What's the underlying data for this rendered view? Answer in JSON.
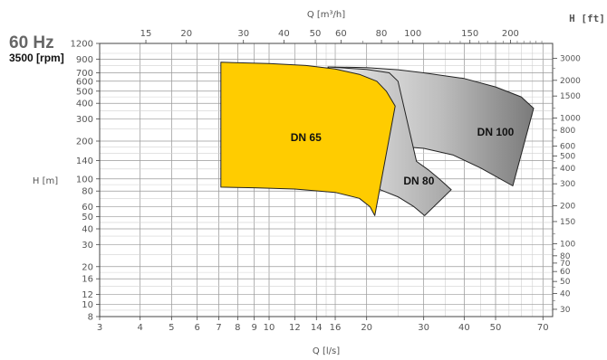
{
  "header": {
    "frequency": "60 Hz",
    "speed": "3500 [rpm]"
  },
  "chart_data": {
    "type": "area",
    "title": "",
    "x_bottom": {
      "label": "Q [l/s]",
      "scale": "log",
      "range": [
        3,
        75
      ],
      "ticks": [
        3,
        4,
        5,
        6,
        7,
        8,
        9,
        10,
        12,
        14,
        16,
        20,
        30,
        40,
        50,
        70
      ]
    },
    "x_top": {
      "label": "Q [m³/h]",
      "scale": "log",
      "ticks": [
        15,
        20,
        30,
        40,
        50,
        60,
        80,
        100,
        150,
        200
      ]
    },
    "y_left": {
      "label": "H [m]",
      "scale": "log",
      "range": [
        8,
        1200
      ],
      "ticks": [
        8,
        10,
        12,
        16,
        20,
        30,
        40,
        50,
        60,
        80,
        100,
        140,
        200,
        300,
        400,
        500,
        600,
        700,
        900,
        1200
      ]
    },
    "y_right": {
      "label": "H [ft]",
      "scale": "log",
      "ticks": [
        30,
        40,
        50,
        60,
        70,
        80,
        100,
        150,
        200,
        300,
        400,
        500,
        600,
        800,
        1000,
        1500,
        2000,
        3000
      ]
    },
    "grid": true,
    "series": [
      {
        "name": "DN 100",
        "color": "#888888",
        "outline": [
          [
            15.2,
            780
          ],
          [
            20.0,
            770
          ],
          [
            25.0,
            740
          ],
          [
            30.0,
            700
          ],
          [
            40.0,
            630
          ],
          [
            50.0,
            540
          ],
          [
            60.0,
            450
          ],
          [
            65.5,
            365
          ],
          [
            56.5,
            88
          ],
          [
            45.0,
            122
          ],
          [
            37.0,
            155
          ],
          [
            30.0,
            175
          ],
          [
            25.0,
            182
          ],
          [
            20.5,
            180
          ],
          [
            18.0,
            178
          ],
          [
            15.2,
            172
          ]
        ]
      },
      {
        "name": "DN 80",
        "color": "#b8b8b8",
        "outline": [
          [
            15.2,
            780
          ],
          [
            20.0,
            745
          ],
          [
            23.5,
            700
          ],
          [
            25.0,
            600
          ],
          [
            28.5,
            138
          ],
          [
            31.0,
            118
          ],
          [
            33.5,
            100
          ],
          [
            36.5,
            82
          ],
          [
            30.2,
            51
          ],
          [
            28.0,
            60
          ],
          [
            25.0,
            72
          ],
          [
            22.0,
            82
          ],
          [
            20.0,
            86
          ]
        ]
      },
      {
        "name": "DN 65",
        "color": "#ffcc00",
        "outline": [
          [
            7.1,
            850
          ],
          [
            10.0,
            830
          ],
          [
            13.0,
            800
          ],
          [
            16.0,
            750
          ],
          [
            19.0,
            680
          ],
          [
            21.5,
            600
          ],
          [
            23.0,
            500
          ],
          [
            24.5,
            380
          ],
          [
            21.2,
            51
          ],
          [
            20.5,
            60
          ],
          [
            19.0,
            70
          ],
          [
            16.0,
            78
          ],
          [
            12.0,
            83
          ],
          [
            9.0,
            85
          ],
          [
            7.1,
            86
          ]
        ]
      }
    ]
  }
}
